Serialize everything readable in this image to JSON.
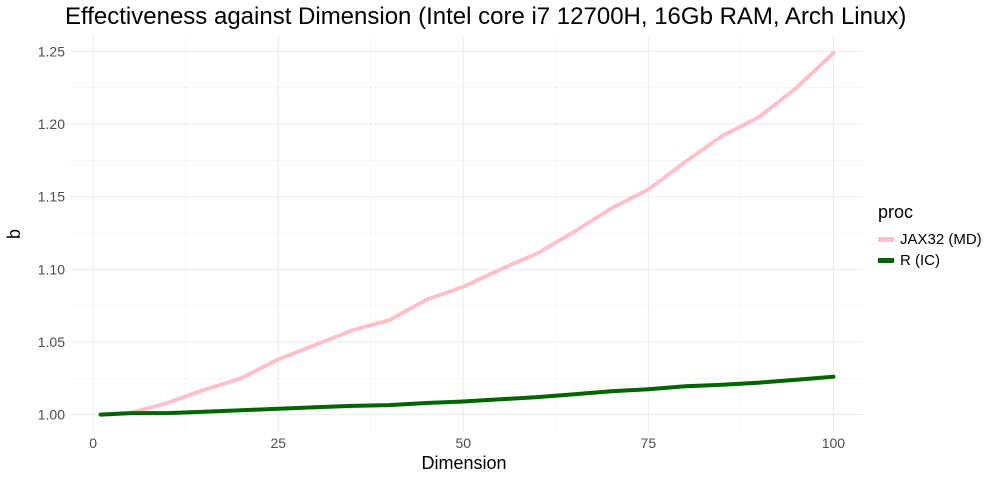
{
  "chart_data": {
    "type": "line",
    "title": "Effectiveness against Dimension (Intel core i7 12700H, 16Gb RAM, Arch Linux)",
    "xlabel": "Dimension",
    "ylabel": "b",
    "xlim": [
      -3,
      104
    ],
    "ylim": [
      0.988,
      1.26
    ],
    "x_ticks": [
      0,
      25,
      50,
      75,
      100
    ],
    "y_ticks": [
      1.0,
      1.05,
      1.1,
      1.15,
      1.2,
      1.25
    ],
    "y_tick_labels": [
      "1.00",
      "1.05",
      "1.10",
      "1.15",
      "1.20",
      "1.25"
    ],
    "grid": true,
    "legend_title": "proc",
    "legend_position": "right",
    "series": [
      {
        "name": "JAX32 (MD)",
        "color": "#ffc0cb",
        "x": [
          1,
          5,
          10,
          15,
          20,
          25,
          30,
          35,
          40,
          45,
          50,
          55,
          60,
          65,
          70,
          75,
          80,
          85,
          90,
          95,
          100
        ],
        "values": [
          1.0,
          1.001,
          1.008,
          1.017,
          1.025,
          1.038,
          1.048,
          1.058,
          1.065,
          1.079,
          1.088,
          1.1,
          1.111,
          1.126,
          1.142,
          1.155,
          1.174,
          1.192,
          1.205,
          1.225,
          1.249
        ]
      },
      {
        "name": "R (IC)",
        "color": "#006400",
        "x": [
          1,
          5,
          10,
          15,
          20,
          25,
          30,
          35,
          40,
          45,
          50,
          55,
          60,
          65,
          70,
          75,
          80,
          85,
          90,
          95,
          100
        ],
        "values": [
          1.0,
          1.001,
          1.001,
          1.002,
          1.003,
          1.004,
          1.005,
          1.006,
          1.0065,
          1.008,
          1.009,
          1.0105,
          1.012,
          1.014,
          1.016,
          1.0175,
          1.0195,
          1.0205,
          1.022,
          1.024,
          1.026
        ]
      }
    ]
  }
}
